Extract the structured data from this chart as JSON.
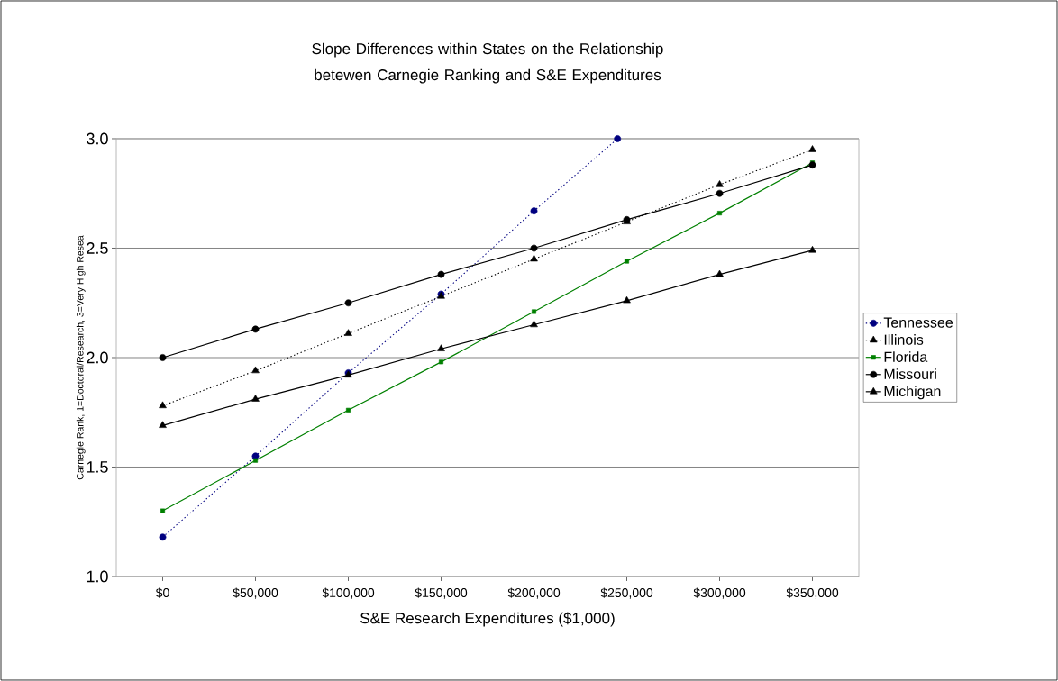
{
  "chart_data": {
    "type": "line",
    "title": "Slope Differences within States on the Relationship betewen Carnegie Ranking and S&E Expenditures",
    "xlabel": "S&E Research Expenditures ($1,000)",
    "ylabel": "Carnegie Rank, 1=Doctoral/Research, 3=Very High Resea",
    "x": [
      0,
      50000,
      100000,
      150000,
      200000,
      250000,
      300000,
      350000
    ],
    "xlim": [
      -25000,
      375000
    ],
    "xticks": [
      {
        "value": 0,
        "label": "$0"
      },
      {
        "value": 50000,
        "label": "$50,000"
      },
      {
        "value": 100000,
        "label": "$100,000"
      },
      {
        "value": 150000,
        "label": "$150,000"
      },
      {
        "value": 200000,
        "label": "$200,000"
      },
      {
        "value": 250000,
        "label": "$250,000"
      },
      {
        "value": 300000,
        "label": "$300,000"
      },
      {
        "value": 350000,
        "label": "$350,000"
      }
    ],
    "ylim": [
      1.0,
      3.0
    ],
    "yticks": [
      {
        "value": 1.0,
        "label": "1.0"
      },
      {
        "value": 1.5,
        "label": "1.5"
      },
      {
        "value": 2.0,
        "label": "2.0"
      },
      {
        "value": 2.5,
        "label": "2.5"
      },
      {
        "value": 3.0,
        "label": "3.0"
      }
    ],
    "grid": "y",
    "legend": "right",
    "series": [
      {
        "name": "Tennessee",
        "color": "#000080",
        "line_style": "dotted",
        "marker": "circle",
        "x": [
          0,
          50000,
          100000,
          150000,
          200000,
          245000
        ],
        "values": [
          1.18,
          1.55,
          1.93,
          2.29,
          2.67,
          3.0
        ]
      },
      {
        "name": "Illinois",
        "color": "#000000",
        "line_style": "dotted",
        "marker": "triangle",
        "values": [
          1.78,
          1.94,
          2.11,
          2.28,
          2.45,
          2.62,
          2.79,
          2.95
        ]
      },
      {
        "name": "Florida",
        "color": "#008000",
        "line_style": "solid",
        "marker": "square",
        "values": [
          1.3,
          1.53,
          1.76,
          1.98,
          2.21,
          2.44,
          2.66,
          2.89
        ]
      },
      {
        "name": "Missouri",
        "color": "#000000",
        "line_style": "solid",
        "marker": "circle",
        "values": [
          2.0,
          2.13,
          2.25,
          2.38,
          2.5,
          2.63,
          2.75,
          2.88
        ]
      },
      {
        "name": "Michigan",
        "color": "#000000",
        "line_style": "solid",
        "marker": "triangle",
        "values": [
          1.69,
          1.81,
          1.92,
          2.04,
          2.15,
          2.26,
          2.38,
          2.49
        ]
      }
    ]
  }
}
